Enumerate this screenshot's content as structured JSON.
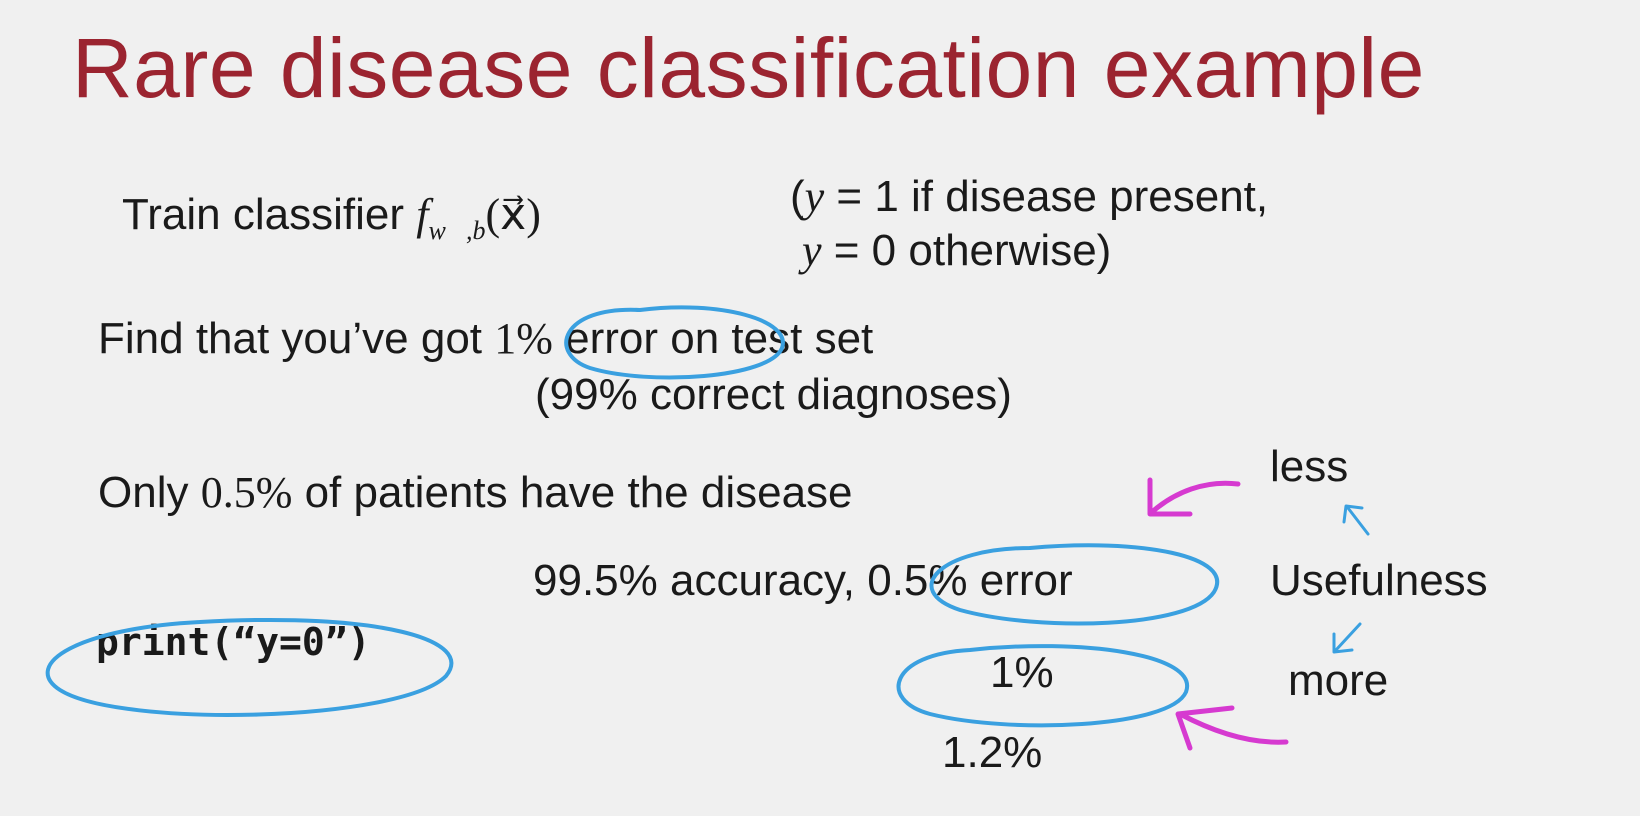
{
  "slide": {
    "title": "Rare disease classification example",
    "train": {
      "text": "Train classifier ",
      "f": "f",
      "sub": "w⃗,b",
      "arg": "(x⃗)"
    },
    "label_def": {
      "line1_open": "(",
      "line1_y": "y",
      "line1_rest": " = 1 if disease present,",
      "line2_y": "y",
      "line2_rest": " = 0 otherwise)"
    },
    "find": {
      "prefix": "Find that you’ve got ",
      "pct": "1%",
      "highlight_rest": " error",
      "suffix": " on test set"
    },
    "correct": "(99% correct diagnoses)",
    "only": {
      "prefix": "Only ",
      "pct": "0.5%",
      "suffix": " of patients have the disease"
    },
    "accuracy_prefix": "99.5% accuracy, ",
    "accuracy_error": "0.5% error",
    "code": "print(“y=0”)",
    "one_pct": "1%",
    "one_two_pct": "1.2%",
    "usefulness": {
      "less": "less",
      "label": "Usefulness",
      "more": "more"
    }
  },
  "colors": {
    "title": "#9b2430",
    "circle": "#3aa0e0",
    "arrow_magenta": "#d63ad0",
    "arrow_blue": "#3aa0e0",
    "background": "#f0f0f0"
  }
}
